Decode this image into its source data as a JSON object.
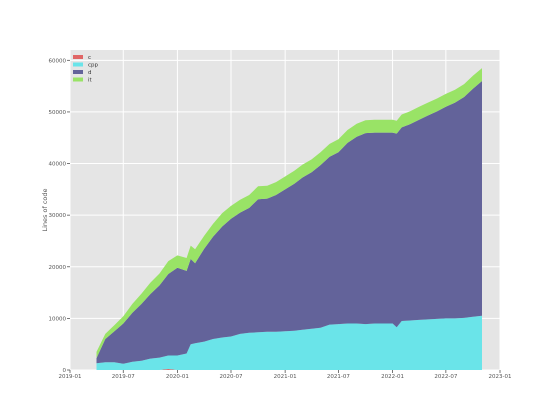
{
  "chart_data": {
    "type": "area",
    "stacked": true,
    "ylabel": "Lines of code",
    "xlabel": "",
    "xlim": [
      "2019-01-01",
      "2023-01-01"
    ],
    "ylim": [
      0,
      62000
    ],
    "grid": true,
    "legend_position": "top-left",
    "x_ticks": [
      "2019-01",
      "2019-07",
      "2020-01",
      "2020-07",
      "2021-01",
      "2021-07",
      "2022-01",
      "2022-07",
      "2023-01"
    ],
    "y_ticks": [
      0,
      10000,
      20000,
      30000,
      40000,
      50000,
      60000
    ],
    "y_tick_labels": [
      "0",
      "10000",
      "20000",
      "30000",
      "40000",
      "50000",
      "60000"
    ],
    "x": [
      "2019-04-01",
      "2019-05-01",
      "2019-06-01",
      "2019-07-01",
      "2019-08-01",
      "2019-09-01",
      "2019-10-01",
      "2019-11-01",
      "2019-12-01",
      "2020-01-01",
      "2020-02-01",
      "2020-02-15",
      "2020-03-01",
      "2020-04-01",
      "2020-05-01",
      "2020-06-01",
      "2020-07-01",
      "2020-08-01",
      "2020-09-01",
      "2020-10-01",
      "2020-11-01",
      "2020-12-01",
      "2021-01-01",
      "2021-02-01",
      "2021-03-01",
      "2021-04-01",
      "2021-05-01",
      "2021-06-01",
      "2021-07-01",
      "2021-08-01",
      "2021-09-01",
      "2021-10-01",
      "2021-11-01",
      "2021-12-01",
      "2022-01-01",
      "2022-01-15",
      "2022-02-01",
      "2022-03-01",
      "2022-04-01",
      "2022-05-01",
      "2022-06-01",
      "2022-07-01",
      "2022-08-01",
      "2022-09-01",
      "2022-10-01",
      "2022-11-01"
    ],
    "series": [
      {
        "name": "c",
        "color": "#e06666",
        "values": [
          0,
          0,
          0,
          0,
          0,
          0,
          0,
          0,
          200,
          0,
          0,
          0,
          0,
          0,
          0,
          0,
          0,
          0,
          0,
          0,
          0,
          0,
          0,
          0,
          0,
          0,
          0,
          0,
          0,
          0,
          0,
          0,
          0,
          0,
          0,
          0,
          0,
          0,
          0,
          0,
          0,
          0,
          0,
          0,
          0,
          0
        ]
      },
      {
        "name": "cpp",
        "color": "#6ae4e9",
        "values": [
          1300,
          1500,
          1500,
          1200,
          1600,
          1800,
          2200,
          2400,
          2600,
          2800,
          3200,
          5000,
          5200,
          5500,
          6000,
          6300,
          6500,
          7000,
          7200,
          7300,
          7400,
          7400,
          7500,
          7600,
          7800,
          8000,
          8200,
          8800,
          8900,
          9000,
          9000,
          8900,
          9000,
          9000,
          9000,
          8300,
          9500,
          9600,
          9700,
          9800,
          9900,
          10000,
          10000,
          10100,
          10300,
          10500
        ]
      },
      {
        "name": "d",
        "color": "#63639a",
        "values": [
          1000,
          4500,
          6000,
          7800,
          9500,
          11000,
          12500,
          14000,
          15800,
          17000,
          16000,
          16500,
          15500,
          18000,
          19800,
          21500,
          22800,
          23500,
          24200,
          25800,
          25800,
          26500,
          27500,
          28500,
          29500,
          30300,
          31500,
          32500,
          33300,
          35000,
          36200,
          37000,
          37000,
          37000,
          37000,
          37500,
          37500,
          38000,
          38800,
          39500,
          40200,
          41000,
          41800,
          42800,
          44200,
          45500
        ]
      },
      {
        "name": "it",
        "color": "#99e366",
        "values": [
          1200,
          1000,
          1200,
          1400,
          1700,
          2000,
          2200,
          2300,
          2500,
          2400,
          2500,
          2600,
          2700,
          2500,
          2500,
          2600,
          2500,
          2500,
          2500,
          2500,
          2500,
          2500,
          2500,
          2500,
          2500,
          2500,
          2500,
          2500,
          2500,
          2500,
          2500,
          2500,
          2500,
          2500,
          2500,
          2500,
          2500,
          2500,
          2500,
          2500,
          2500,
          2500,
          2500,
          2500,
          2500,
          2500
        ]
      }
    ]
  }
}
